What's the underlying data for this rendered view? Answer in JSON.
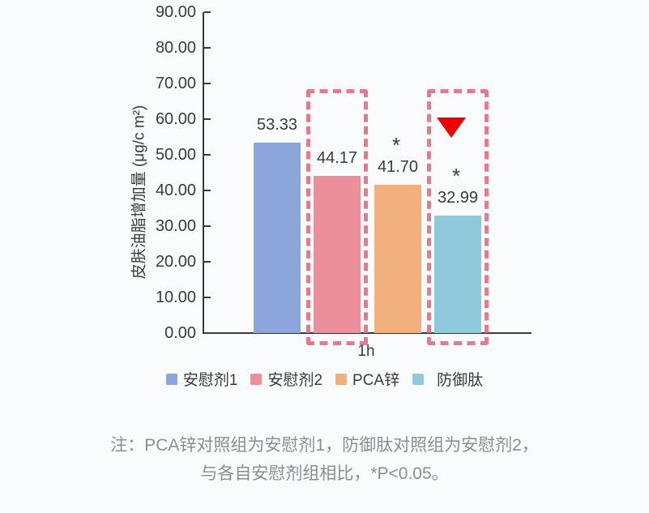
{
  "chart_data": {
    "type": "bar",
    "title": "",
    "categories": [
      "1h"
    ],
    "series": [
      {
        "name": "安慰剂1",
        "values": [
          53.33
        ],
        "value_label": "53.33",
        "color": "#8CA5DC",
        "highlighted": false,
        "significance": "",
        "marker": ""
      },
      {
        "name": "安慰剂2",
        "values": [
          44.17
        ],
        "value_label": "44.17",
        "color": "#EC8F9B",
        "highlighted": true,
        "significance": "",
        "marker": ""
      },
      {
        "name": "PCA锌",
        "values": [
          41.7
        ],
        "value_label": "41.70",
        "color": "#F1B07D",
        "highlighted": false,
        "significance": "*",
        "marker": ""
      },
      {
        "name": "防御肽",
        "values": [
          32.99
        ],
        "value_label": "32.99",
        "color": "#90C9DC",
        "highlighted": true,
        "significance": "*",
        "marker": "red-triangle-down"
      }
    ],
    "xlabel": "",
    "ylabel": "皮肤油脂增加量 (μg/c m²)",
    "ylim": [
      0,
      90
    ],
    "ytick_step": 10,
    "ytick_labels": [
      "90.00",
      "80.00",
      "70.00",
      "60.00",
      "50.00",
      "40.00",
      "30.00",
      "20.00",
      "10.00",
      "0.00"
    ],
    "grid": false,
    "legend_position": "bottom",
    "highlight_box_color": "#E57A8A",
    "marker_color": "#EC0000"
  },
  "note": {
    "line1": "注：PCA锌对照组为安慰剂1，防御肽对照组为安慰剂2，",
    "line2": "与各自安慰剂组相比，*P<0.05。"
  }
}
